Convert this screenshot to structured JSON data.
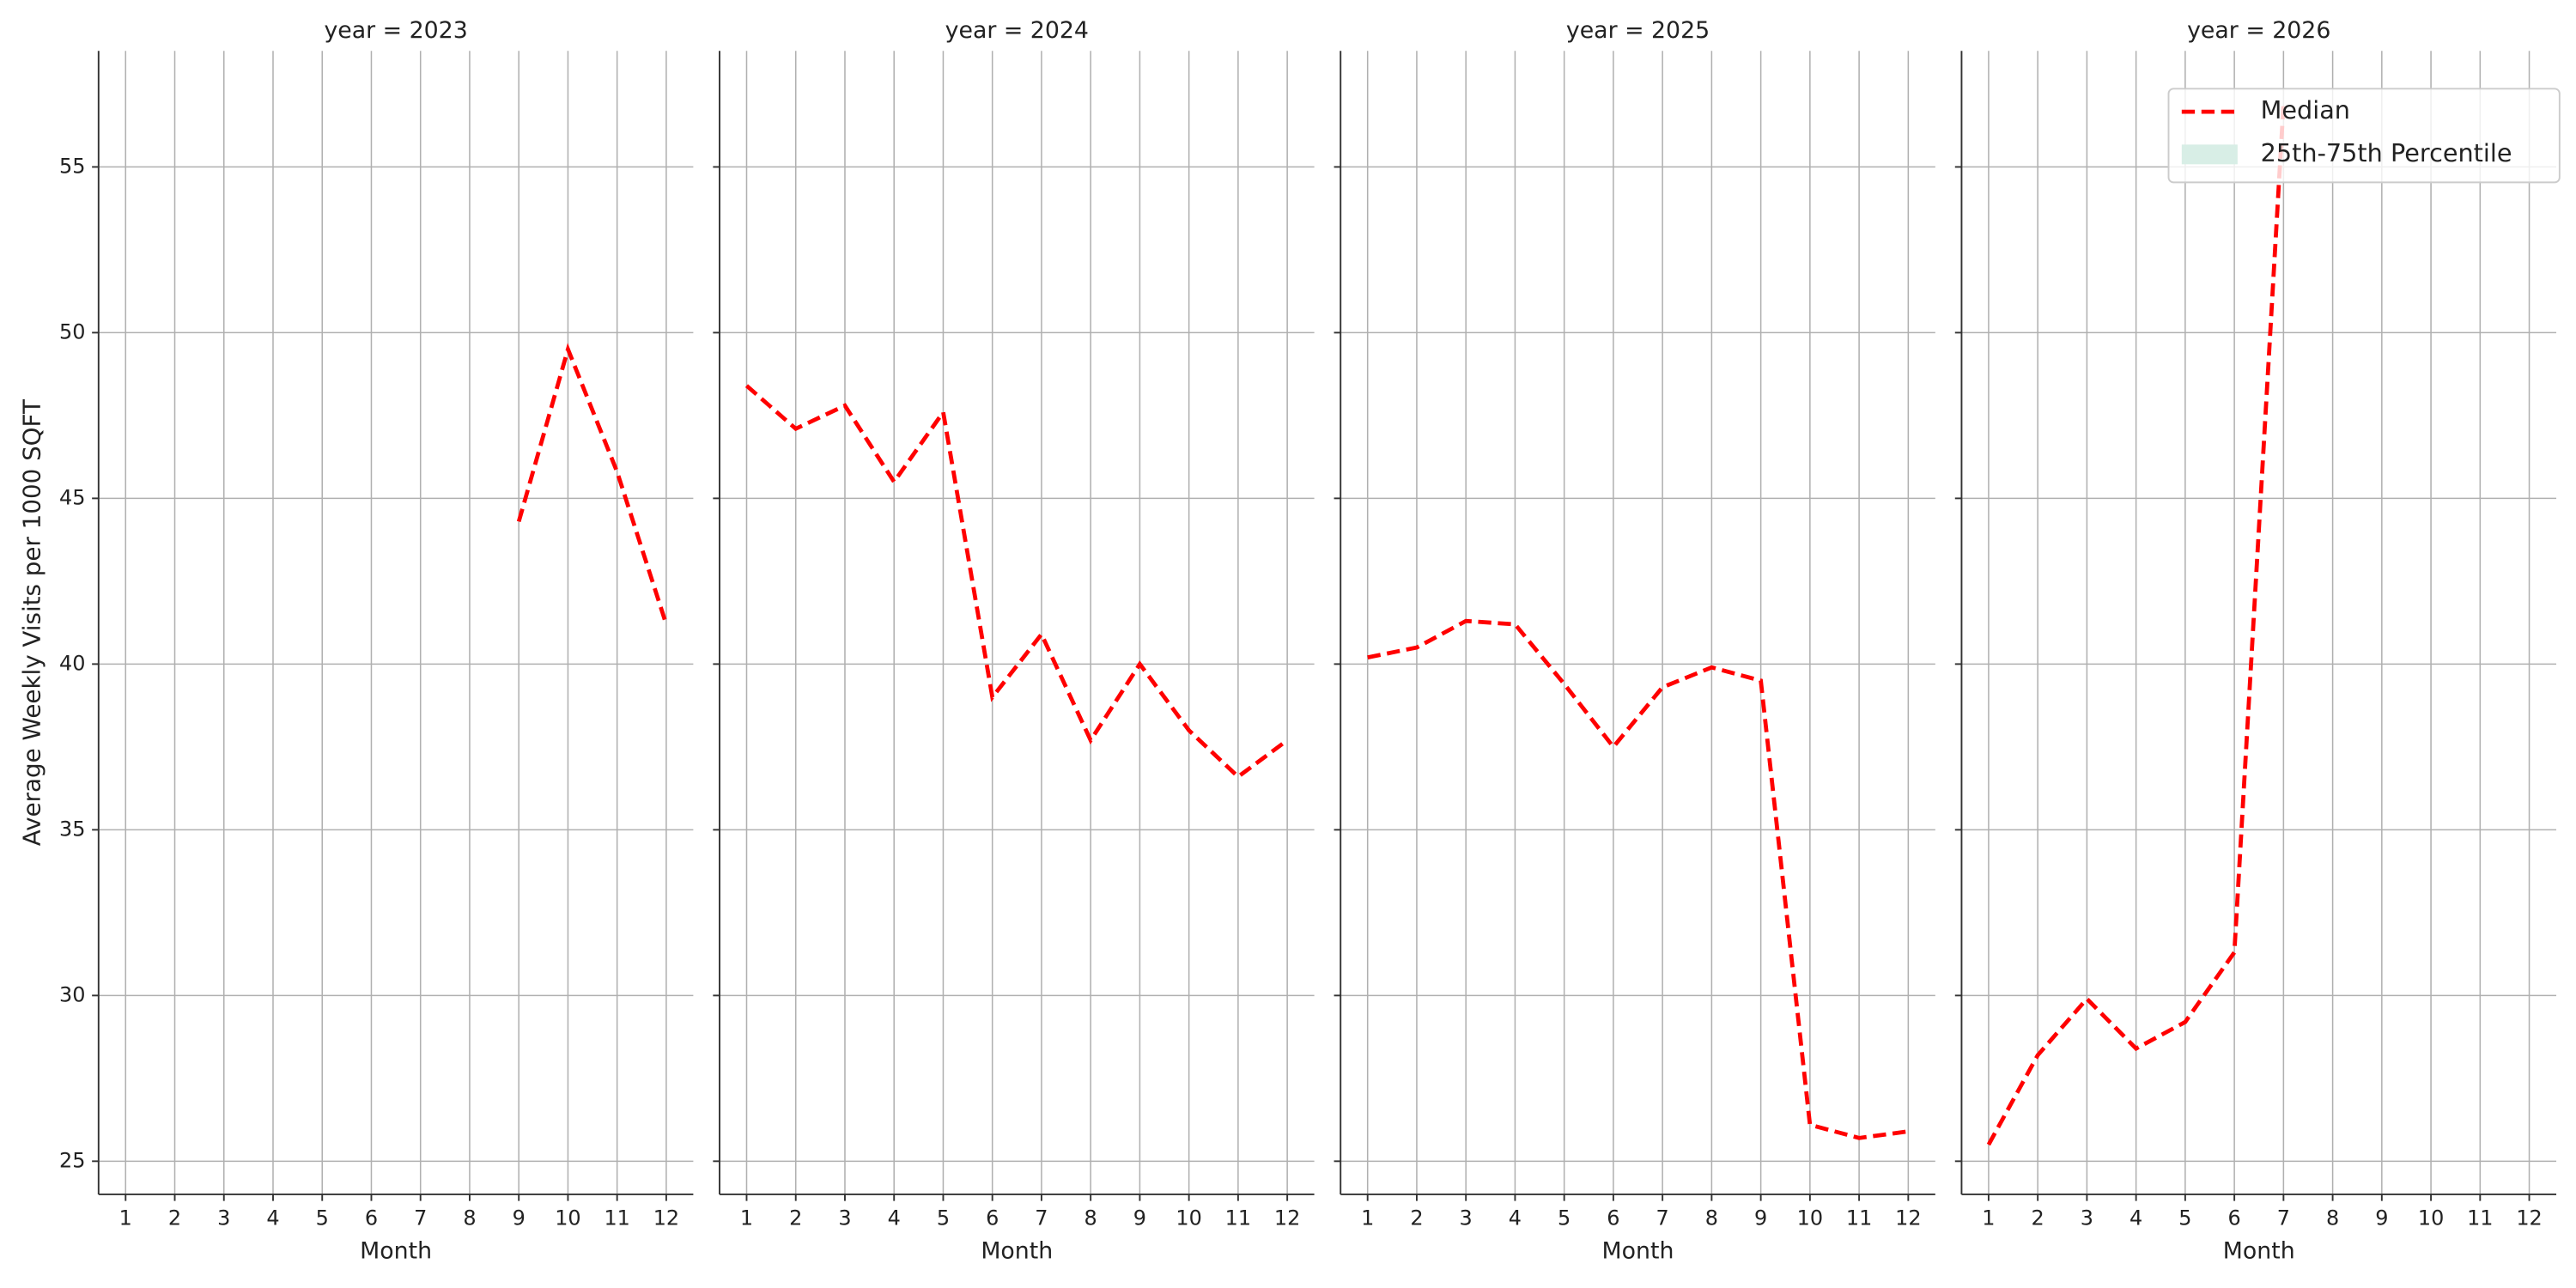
{
  "chart_data": [
    {
      "type": "line",
      "title": "year = 2023",
      "xlabel": "Month",
      "ylabel": "Average Weekly Visits per 1000 SQFT",
      "x": [
        1,
        2,
        3,
        4,
        5,
        6,
        7,
        8,
        9,
        10,
        11,
        12
      ],
      "xlim": [
        0.45,
        12.55
      ],
      "xticks": [
        1,
        2,
        3,
        4,
        5,
        6,
        7,
        8,
        9,
        10,
        11,
        12
      ],
      "ylim": [
        24,
        58.5
      ],
      "yticks": [
        25,
        30,
        35,
        40,
        45,
        50,
        55
      ],
      "grid": true,
      "series": [
        {
          "name": "Median",
          "color": "#ff0000",
          "values": [
            null,
            null,
            null,
            null,
            null,
            null,
            null,
            null,
            44.3,
            49.5,
            45.8,
            41.2
          ]
        }
      ]
    },
    {
      "type": "line",
      "title": "year = 2024",
      "xlabel": "Month",
      "x": [
        1,
        2,
        3,
        4,
        5,
        6,
        7,
        8,
        9,
        10,
        11,
        12
      ],
      "xlim": [
        0.45,
        12.55
      ],
      "xticks": [
        1,
        2,
        3,
        4,
        5,
        6,
        7,
        8,
        9,
        10,
        11,
        12
      ],
      "ylim": [
        24,
        58.5
      ],
      "yticks": [
        25,
        30,
        35,
        40,
        45,
        50,
        55
      ],
      "grid": true,
      "series": [
        {
          "name": "Median",
          "color": "#ff0000",
          "values": [
            48.4,
            47.1,
            47.8,
            45.5,
            47.6,
            39.0,
            40.9,
            37.7,
            40.0,
            38.0,
            36.6,
            37.7
          ]
        }
      ]
    },
    {
      "type": "line",
      "title": "year = 2025",
      "xlabel": "Month",
      "x": [
        1,
        2,
        3,
        4,
        5,
        6,
        7,
        8,
        9,
        10,
        11,
        12
      ],
      "xlim": [
        0.45,
        12.55
      ],
      "xticks": [
        1,
        2,
        3,
        4,
        5,
        6,
        7,
        8,
        9,
        10,
        11,
        12
      ],
      "ylim": [
        24,
        58.5
      ],
      "yticks": [
        25,
        30,
        35,
        40,
        45,
        50,
        55
      ],
      "grid": true,
      "series": [
        {
          "name": "Median",
          "color": "#ff0000",
          "values": [
            40.2,
            40.5,
            41.3,
            41.2,
            39.4,
            37.5,
            39.3,
            39.9,
            39.5,
            26.1,
            25.7,
            25.9
          ]
        }
      ]
    },
    {
      "type": "line",
      "title": "year = 2026",
      "xlabel": "Month",
      "x": [
        1,
        2,
        3,
        4,
        5,
        6,
        7,
        8,
        9,
        10,
        11,
        12
      ],
      "xlim": [
        0.45,
        12.55
      ],
      "xticks": [
        1,
        2,
        3,
        4,
        5,
        6,
        7,
        8,
        9,
        10,
        11,
        12
      ],
      "ylim": [
        24,
        58.5
      ],
      "yticks": [
        25,
        30,
        35,
        40,
        45,
        50,
        55
      ],
      "grid": true,
      "legend": "upper right",
      "series": [
        {
          "name": "Median",
          "color": "#ff0000",
          "values": [
            25.5,
            28.2,
            29.9,
            28.4,
            29.2,
            31.3,
            56.9,
            null,
            null,
            null,
            null,
            null
          ]
        },
        {
          "name": "25th-75th Percentile",
          "color": "#d8eee6",
          "kind": "band",
          "values": [
            null,
            null,
            null,
            null,
            null,
            null,
            null,
            null,
            null,
            null,
            null,
            null
          ]
        }
      ]
    }
  ]
}
